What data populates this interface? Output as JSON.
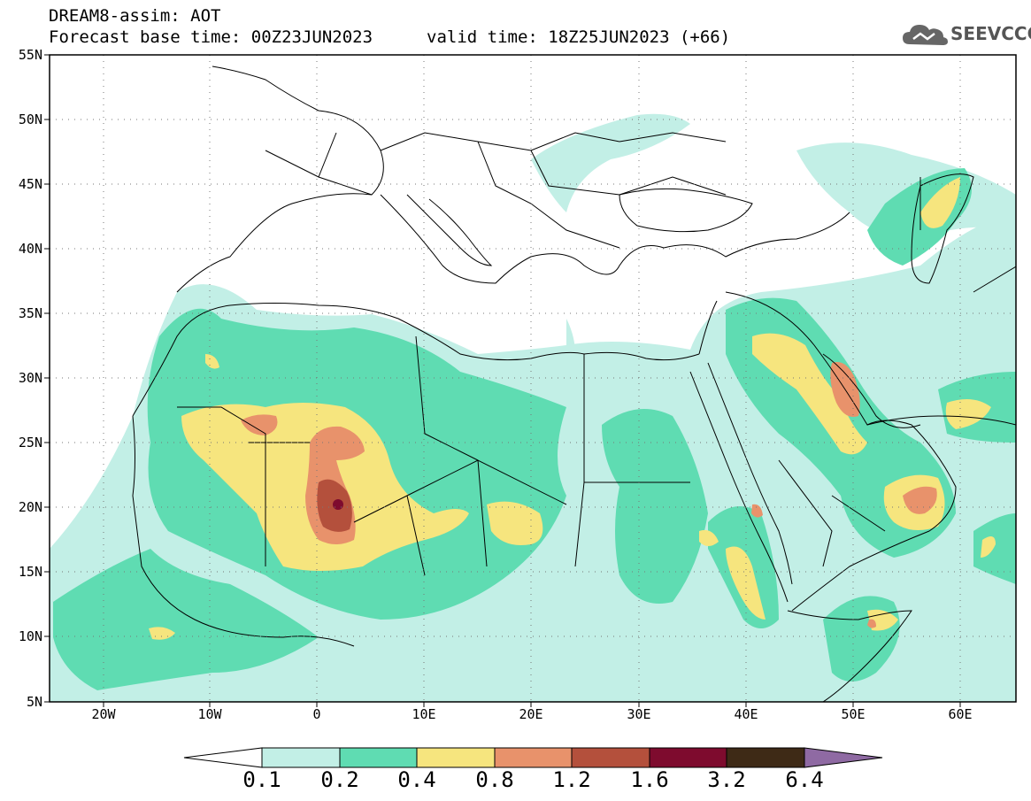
{
  "header": {
    "model": "DREAM8-assim: AOT",
    "base_time": "Forecast base time: 00Z23JUN2023",
    "valid_time": "valid time: 18Z25JUN2023 (+66)"
  },
  "logo": {
    "text": "SEEVCCC",
    "icon": "cloud-icon"
  },
  "axes": {
    "lat_labels": [
      "55N",
      "50N",
      "45N",
      "40N",
      "35N",
      "30N",
      "25N",
      "20N",
      "15N",
      "10N",
      "5N"
    ],
    "lon_labels": [
      "20W",
      "10W",
      "0",
      "10E",
      "20E",
      "30E",
      "40E",
      "50E",
      "60E"
    ],
    "lat_range": [
      5,
      55
    ],
    "lon_range": [
      -25,
      65
    ]
  },
  "colorbar": {
    "labels": [
      "0.1",
      "0.2",
      "0.4",
      "0.8",
      "1.2",
      "1.6",
      "3.2",
      "6.4"
    ],
    "colors": [
      "#ffffff",
      "#c2efe6",
      "#5fdcb2",
      "#f6e57e",
      "#e8926b",
      "#b4503c",
      "#7e0b2e",
      "#3e2a16",
      "#8f6aa3"
    ]
  },
  "colors": {
    "level1": "#c2efe6",
    "level2": "#5fdcb2",
    "level3": "#f6e57e",
    "level4": "#e8926b",
    "level5": "#b4503c",
    "level6": "#7e0b2e"
  }
}
